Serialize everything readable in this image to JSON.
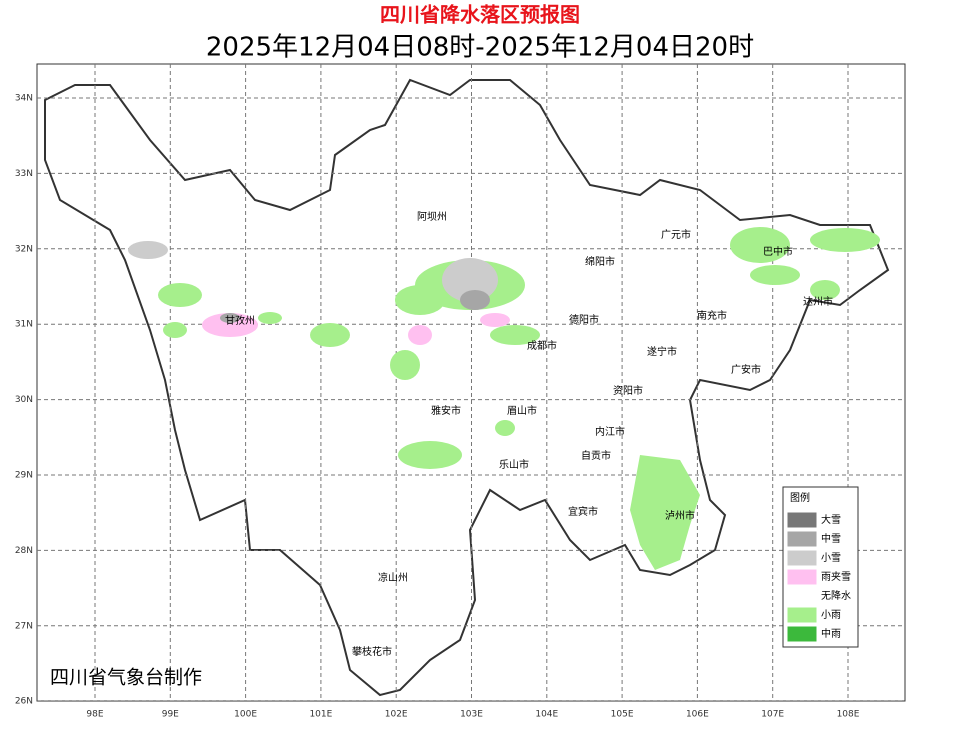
{
  "header": {
    "title": "四川省降水落区预报图",
    "subtitle": "2025年12月04日08时-2025年12月04日20时"
  },
  "map": {
    "lat_labels": [
      "34N",
      "33N",
      "32N",
      "31N",
      "30N",
      "29N",
      "28N",
      "27N",
      "26N"
    ],
    "lon_labels": [
      "98E",
      "99E",
      "100E",
      "101E",
      "102E",
      "103E",
      "104E",
      "105E",
      "106E",
      "107E",
      "108E"
    ],
    "places": [
      "阿坝州",
      "广元市",
      "巴中市",
      "绵阳市",
      "达州市",
      "德阳市",
      "南充市",
      "甘孜州",
      "成都市",
      "遂宁市",
      "广安市",
      "资阳市",
      "雅安市",
      "眉山市",
      "内江市",
      "乐山市",
      "自贡市",
      "泸州市",
      "宜宾市",
      "凉山州",
      "攀枝花市"
    ],
    "credit": "四川省气象台制作"
  },
  "legend": {
    "title": "图例",
    "items": [
      {
        "label": "大雪",
        "color": "#777777"
      },
      {
        "label": "中雪",
        "color": "#a6a6a6"
      },
      {
        "label": "小雪",
        "color": "#cccccc"
      },
      {
        "label": "雨夹雪",
        "color": "#ffc0f0"
      },
      {
        "label": "无降水",
        "color": "#ffffff"
      },
      {
        "label": "小雨",
        "color": "#a6ef8c"
      },
      {
        "label": "中雨",
        "color": "#3cb93c"
      }
    ]
  }
}
